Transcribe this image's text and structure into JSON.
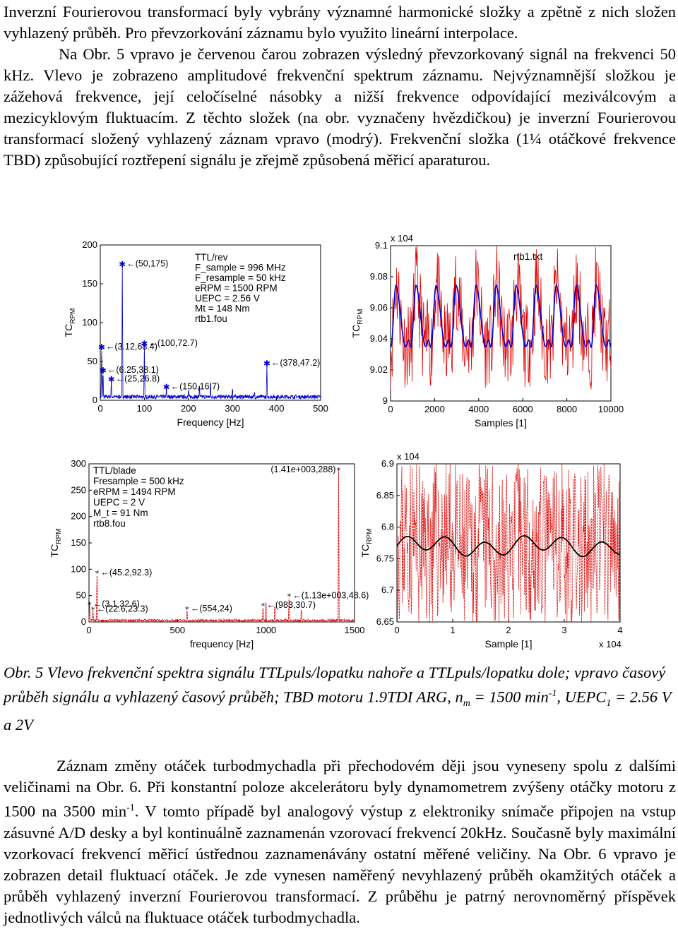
{
  "intro": {
    "p1": "Inverzní Fourierovou transformací byly vybrány významné harmonické složky a zpětně z nich složen vyhlazený průběh. Pro převzorkování záznamu bylo využito lineární interpolace.",
    "p2": "Na Obr. 5 vpravo je červenou čarou zobrazen výsledný převzorkovaný signál na frekvenci 50 kHz. Vlevo je zobrazeno amplitudové frekvenční spektrum záznamu. Nejvýznamnější složkou je zážehová frekvence, její celočíselné násobky a nižší frekvence odpovídající meziválcovým a mezicyklovým fluktuacím. Z těchto složek (na obr. vyznačeny hvězdičkou) je inverzní Fourierovou transformací složený vyhlazený záznam vpravo (modrý). Frekvenční složka (1¼ otáčkové frekvence TBD) způsobující roztřepení signálu je zřejmě způsobená měřicí aparaturou."
  },
  "caption": {
    "prefix": "Obr. 5 Vlevo frekvenční spektra signálu TTLpuls/lopatku nahoře a TTLpuls/lopatku dole; vpravo časový průběh signálu a vyhlazený časový průběh; TBD motoru 1.9TDI ARG, n",
    "sub_m": "m",
    "mid": " = 1500 min",
    "sup_m1": "-1",
    "mid2": ", UEPC",
    "sub_1": "1",
    "suffix": " = 2.56 V a 2V"
  },
  "body": {
    "s1": "Záznam změny otáček turbodmychadla při přechodovém ději jsou vyneseny spolu z dalšími veličinami na Obr. 6. Při konstantní poloze akcelerátoru byly dynamometrem zvýšeny otáčky motoru z 1500 na 3500 min",
    "sup": "-1",
    "s2": ". V tomto případě byl analogový výstup z elektroniky snímače připojen na vstup zásuvné A/D desky a byl kontinuálně zaznamenán vzorovací frekvencí 20kHz. Současně byly maximální vzorkovací frekvencí měřicí ústřednou zaznamenávány ostatní měřené veličiny. Na Obr. 6 vpravo je zobrazen detail fluktuací otáček. Je zde vynesen naměřený nevyhlazený průběh okamžitých otáček a průběh vyhlazený inverzní Fourierovou transformací. Z průběhu je patrný nerovnoměrný příspěvek jednotlivých válců na fluktuace otáček turbodmychadla."
  },
  "chart_data": [
    {
      "type": "line",
      "xlabel": "Frequency [Hz]",
      "ylabel": "TC_RPM",
      "xlim": [
        0,
        500
      ],
      "ylim": [
        0,
        200
      ],
      "xticks": [
        "0",
        "100",
        "200",
        "300",
        "400",
        "500"
      ],
      "yticks": [
        "0",
        "50",
        "100",
        "150",
        "200"
      ],
      "info": [
        "TTL/rev",
        "F_sample = 996 MHz",
        "F_resample = 50 kHz",
        "eRPM = 1500 RPM",
        "UEPC = 2.56 V",
        "Mt = 148 Nm",
        "rtb1.fou"
      ],
      "peaks": [
        {
          "x": 3.1,
          "y": 68.4,
          "label": "(3.12,68.4)"
        },
        {
          "x": 6.25,
          "y": 38.1,
          "label": "(6.25,38.1)"
        },
        {
          "x": 25,
          "y": 26.8,
          "label": "(25,26.8)"
        },
        {
          "x": 50,
          "y": 175,
          "label": "(50,175)"
        },
        {
          "x": 100,
          "y": 72.7,
          "label": "(100,72.7)"
        },
        {
          "x": 150,
          "y": 16.7,
          "label": "(150,16.7)"
        },
        {
          "x": 378,
          "y": 47.2,
          "label": "(378,47.2)"
        }
      ],
      "color": "#0000cc"
    },
    {
      "type": "line",
      "xlabel": "Samples [1]",
      "ylabel": "TC_RPM",
      "exponent": "x 10^4",
      "legend": "rtb1.txt",
      "xlim": [
        0,
        10000
      ],
      "ylim": [
        9.0,
        9.1
      ],
      "xticks": [
        "0",
        "2000",
        "4000",
        "6000",
        "8000",
        "10000"
      ],
      "yticks": [
        "9",
        "9.02",
        "9.04",
        "9.06",
        "9.08",
        "9.1"
      ],
      "series": [
        {
          "color": "#dd0000"
        },
        {
          "color": "#0000cc"
        }
      ]
    },
    {
      "type": "line",
      "xlabel": "frequency [Hz]",
      "ylabel": "TC_RPM",
      "xlim": [
        0,
        1500
      ],
      "ylim": [
        0,
        300
      ],
      "xticks": [
        "0",
        "500",
        "1000",
        "1500"
      ],
      "yticks": [
        "0",
        "50",
        "100",
        "150",
        "200",
        "250",
        "300"
      ],
      "info": [
        "TTL/blade",
        "Fresample = 500 kHz",
        "eRPM = 1494 RPM",
        "UEPC = 2 V",
        "M_t = 91 Nm",
        "rtb8.fou"
      ],
      "peaks": [
        {
          "x": 3.1,
          "y": 32.6,
          "label": "(3.1,32.6)"
        },
        {
          "x": 22.6,
          "y": 23.3,
          "label": "(22.6,23.3)"
        },
        {
          "x": 45.2,
          "y": 92.3,
          "label": "(45.2,92.3)"
        },
        {
          "x": 554,
          "y": 24,
          "label": "(554,24)"
        },
        {
          "x": 983,
          "y": 30.7,
          "label": "(983,30.7)"
        },
        {
          "x": 1130,
          "y": 48.6,
          "label": "(1.13e+003,48.6)"
        },
        {
          "x": 1410,
          "y": 288,
          "label": "(1.41e+003,288)"
        }
      ],
      "color": "#dd0000"
    },
    {
      "type": "line",
      "xlabel": "Sample [1]",
      "ylabel": "TC_RPM",
      "exponent": "x 10^4",
      "xexponent": "x 10^4",
      "xlim": [
        0,
        4
      ],
      "ylim": [
        6.65,
        6.9
      ],
      "xticks": [
        "0",
        "1",
        "2",
        "3",
        "4"
      ],
      "yticks": [
        "6.65",
        "6.7",
        "6.75",
        "6.8",
        "6.85",
        "6.9"
      ],
      "series": [
        {
          "color": "#dd0000"
        },
        {
          "color": "#000000"
        }
      ]
    }
  ]
}
